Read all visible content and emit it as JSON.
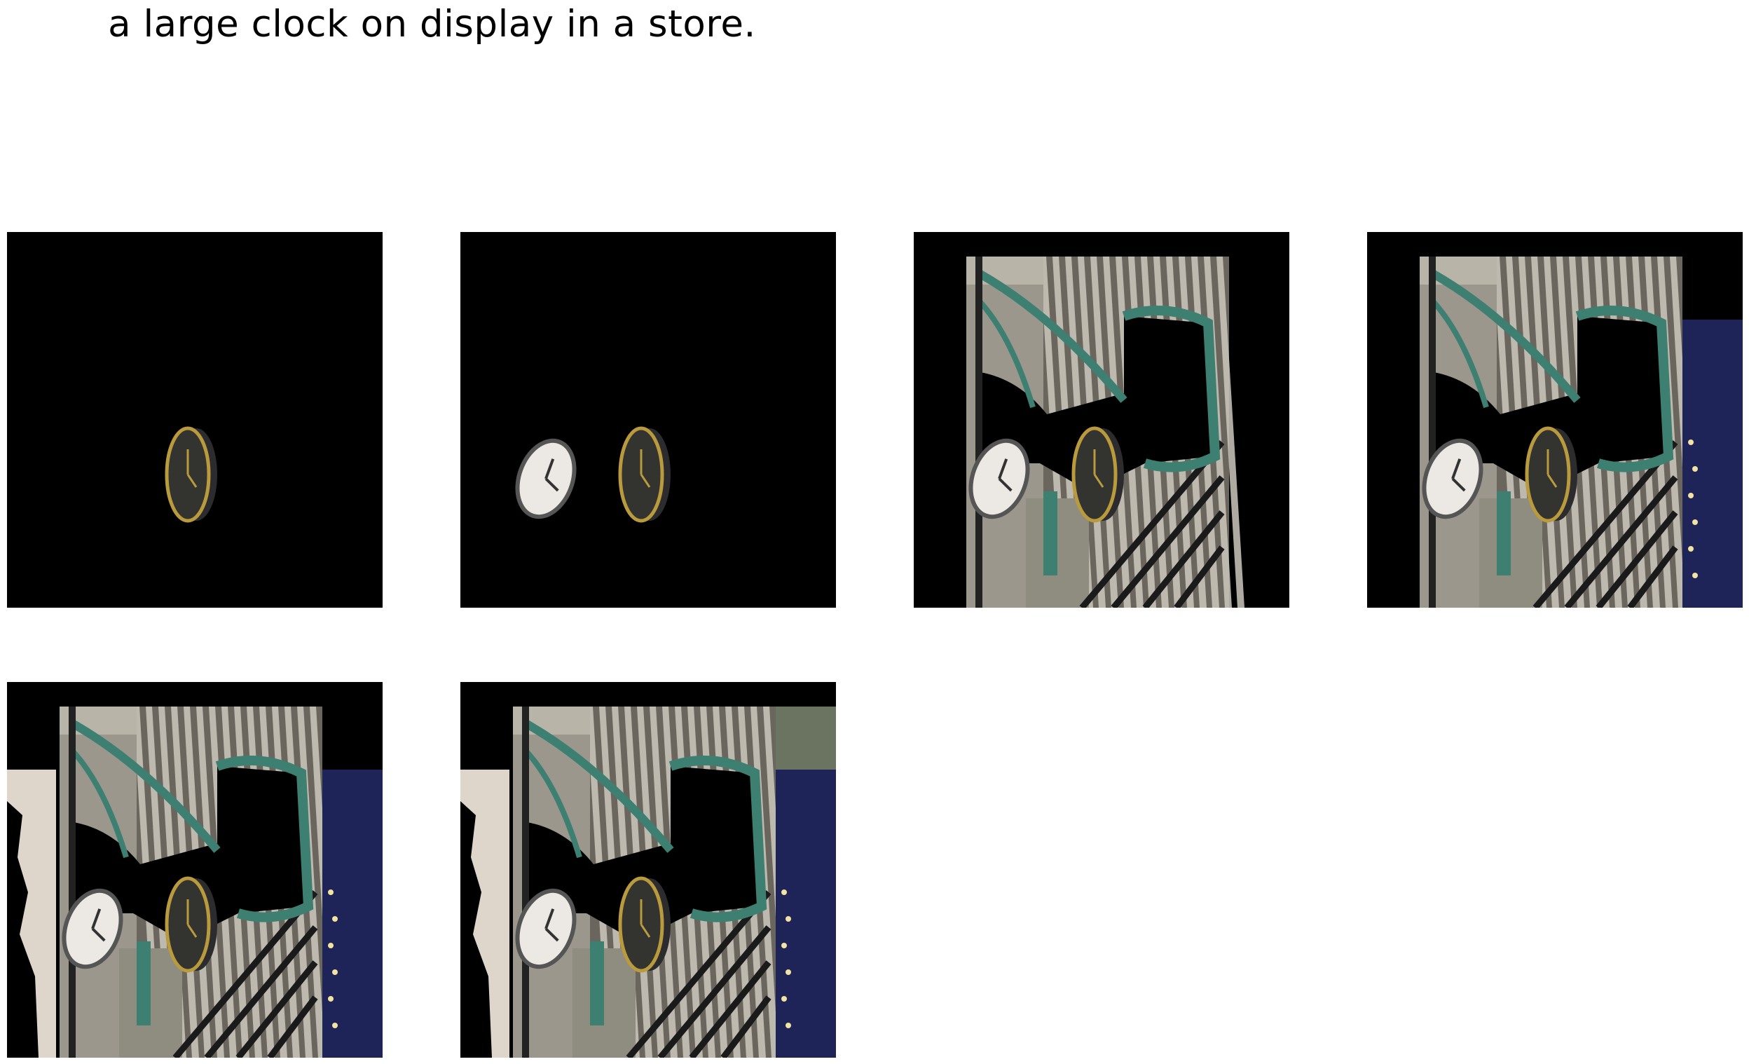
{
  "figure": {
    "title": "a large clock on display in a store.",
    "panels": [
      {
        "step": 1,
        "layers": [
          "clock-gold"
        ]
      },
      {
        "step": 2,
        "layers": [
          "clock-gold",
          "clock-white"
        ]
      },
      {
        "step": 3,
        "layers": [
          "clock-gold",
          "clock-white",
          "facade"
        ]
      },
      {
        "step": 4,
        "layers": [
          "clock-gold",
          "clock-white",
          "facade",
          "night-sky"
        ]
      },
      {
        "step": 5,
        "layers": [
          "clock-gold",
          "clock-white",
          "facade",
          "night-sky",
          "wall-left"
        ]
      },
      {
        "step": 6,
        "layers": [
          "clock-gold",
          "clock-white",
          "facade",
          "night-sky",
          "wall-left",
          "grey-patch"
        ]
      }
    ]
  },
  "colors": {
    "background": "#000000",
    "bracket": "#3d7f70",
    "night_sky": "#1e2358",
    "facade_light": "#cdc8bd",
    "facade_dark": "#6a665d",
    "clock_gold_rim": "#b99a3c",
    "clock_white_face": "#ece9e4",
    "wall": "#ded6cb"
  }
}
